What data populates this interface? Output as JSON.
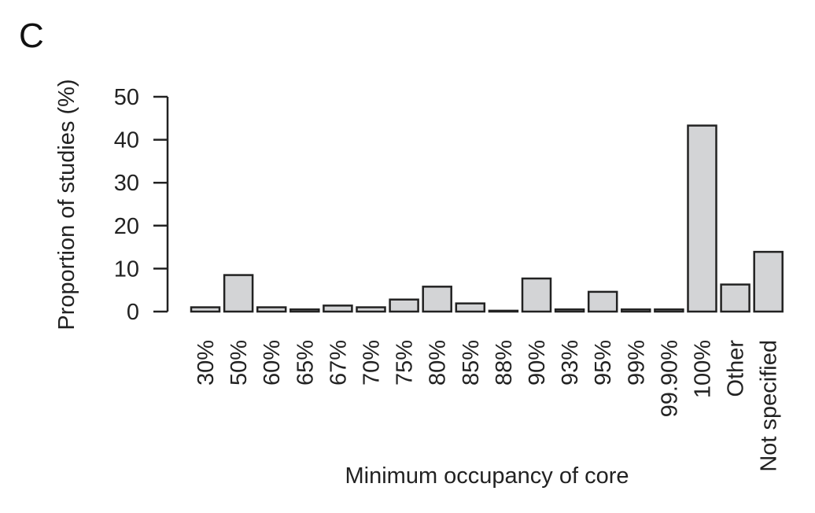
{
  "panel_label": "C",
  "chart_data": {
    "type": "bar",
    "title": "",
    "xlabel": "Minimum occupancy of core",
    "ylabel": "Proportion of studies (%)",
    "ylim": [
      0,
      50
    ],
    "yticks": [
      "0",
      "10",
      "20",
      "30",
      "40",
      "50"
    ],
    "categories": [
      "30%",
      "50%",
      "60%",
      "65%",
      "67%",
      "70%",
      "75%",
      "80%",
      "85%",
      "88%",
      "90%",
      "93%",
      "95%",
      "99%",
      "99.90%",
      "100%",
      "Other",
      "Not specified"
    ],
    "values": [
      1.0,
      8.5,
      1.0,
      0.5,
      1.4,
      1.0,
      2.8,
      5.8,
      1.9,
      0.2,
      7.7,
      0.5,
      4.6,
      0.5,
      0.5,
      43.3,
      6.3,
      13.9
    ],
    "grid": false,
    "bar_fill": "#d3d4d6",
    "bar_stroke": "#222222"
  }
}
